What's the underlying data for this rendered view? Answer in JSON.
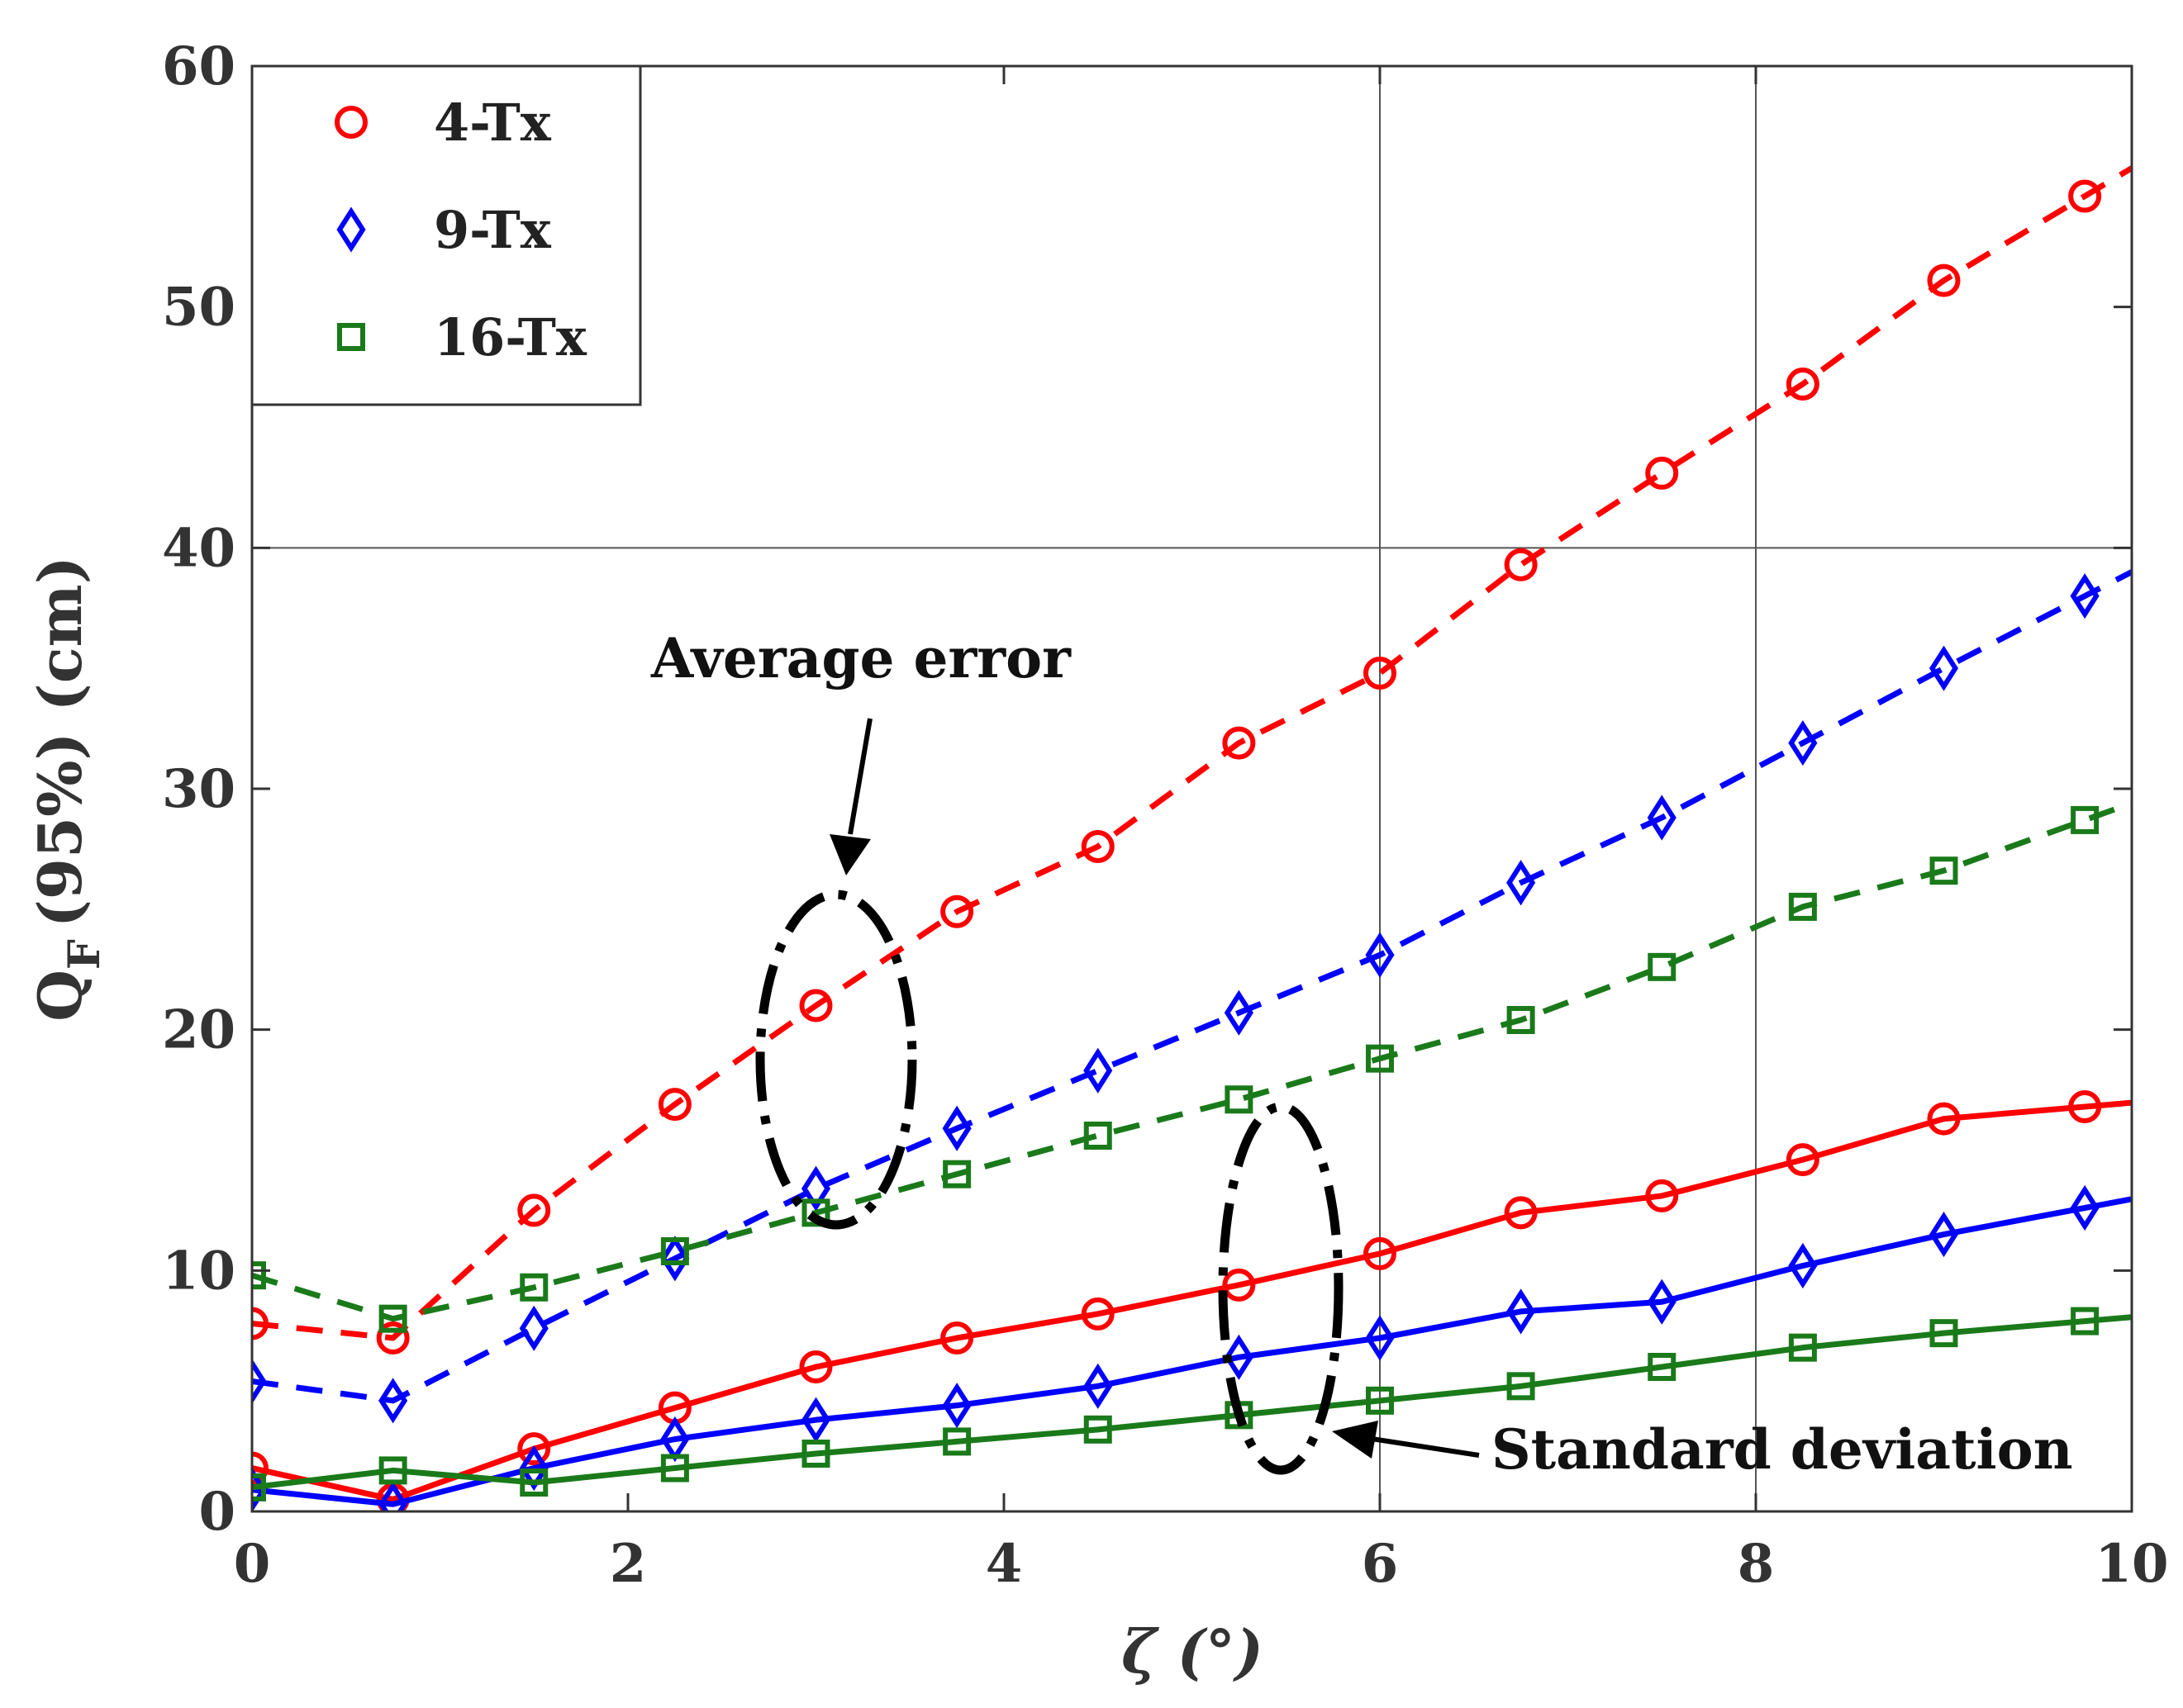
{
  "chart_data": {
    "type": "line",
    "title": "",
    "xlabel": "ζ (°)",
    "ylabel_main": "Q",
    "ylabel_sub": "F",
    "ylabel_rest": "(95%) (cm)",
    "xlim": [
      0,
      10
    ],
    "ylim": [
      0,
      60
    ],
    "xticks": [
      "0",
      "2",
      "4",
      "6",
      "8",
      "10"
    ],
    "yticks": [
      "0",
      "10",
      "20",
      "30",
      "40",
      "50",
      "60"
    ],
    "grid": "partial",
    "legend_position": "top-left",
    "x": [
      0,
      0.75,
      1.5,
      2.25,
      3.0,
      3.75,
      4.5,
      5.25,
      6.0,
      6.75,
      7.5,
      8.25,
      9.0,
      9.75
    ],
    "series": [
      {
        "name": "4-Tx",
        "color": "#ff0000",
        "marker": "circle",
        "average_error": [
          7.8,
          7.2,
          12.5,
          16.9,
          21.0,
          24.9,
          27.6,
          31.9,
          34.8,
          39.3,
          43.1,
          46.8,
          51.1,
          54.6
        ],
        "standard_deviation": [
          1.8,
          0.5,
          2.6,
          4.3,
          6.0,
          7.2,
          8.2,
          9.4,
          10.7,
          12.4,
          13.1,
          14.6,
          16.3,
          16.8
        ]
      },
      {
        "name": "9-Tx",
        "color": "#0000ff",
        "marker": "diamond",
        "average_error": [
          5.4,
          4.6,
          7.6,
          10.5,
          13.4,
          15.9,
          18.3,
          20.7,
          23.1,
          26.1,
          28.8,
          31.9,
          35.0,
          38.0
        ],
        "standard_deviation": [
          0.9,
          0.3,
          1.8,
          3.0,
          3.8,
          4.4,
          5.2,
          6.4,
          7.2,
          8.3,
          8.7,
          10.2,
          11.5,
          12.6
        ]
      },
      {
        "name": "16-Tx",
        "color": "#1a7a1a",
        "marker": "square",
        "average_error": [
          9.8,
          8.0,
          9.3,
          10.8,
          12.4,
          14.0,
          15.6,
          17.1,
          18.8,
          20.4,
          22.6,
          25.1,
          26.6,
          28.7
        ],
        "standard_deviation": [
          1.0,
          1.7,
          1.2,
          1.8,
          2.4,
          2.9,
          3.4,
          4.0,
          4.6,
          5.2,
          6.0,
          6.8,
          7.4,
          7.9
        ]
      }
    ],
    "annotations": [
      {
        "text": "Average error"
      },
      {
        "text": "Standard deviation"
      }
    ]
  }
}
